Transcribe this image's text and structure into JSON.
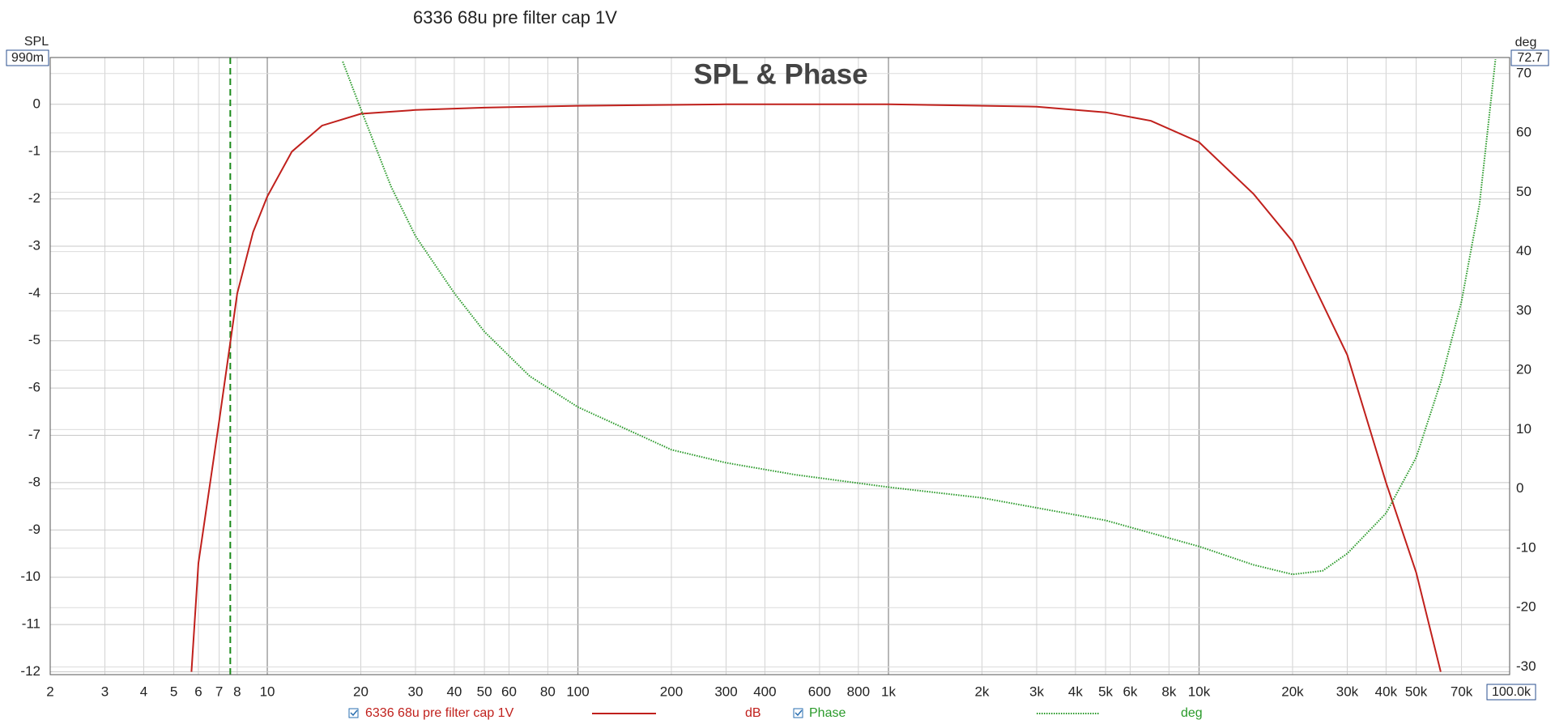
{
  "chart_data": {
    "type": "line",
    "window_title": "6336 68u pre filter cap 1V",
    "title": "SPL & Phase",
    "ylabel": "SPL",
    "y2label": "deg",
    "ylim": [
      -12.06,
      0.99
    ],
    "ylim_label": "990m",
    "y2lim": [
      -31.3,
      72.7
    ],
    "y2lim_label": "72.7",
    "xlim": [
      2,
      100000
    ],
    "xlim_label": "100.0k",
    "xscale": "log",
    "grid": true,
    "yticks": [
      0,
      -1,
      -2,
      -3,
      -4,
      -5,
      -6,
      -7,
      -8,
      -9,
      -10,
      -11,
      -12
    ],
    "y2ticks": [
      70,
      60,
      50,
      40,
      30,
      20,
      10,
      0,
      -10,
      -20,
      -30
    ],
    "xticks": [
      2,
      3,
      4,
      5,
      6,
      7,
      8,
      10,
      20,
      30,
      40,
      50,
      60,
      80,
      100,
      200,
      300,
      400,
      600,
      800,
      {
        "value": 1000,
        "label": "1k"
      },
      {
        "value": 2000,
        "label": "2k"
      },
      {
        "value": 3000,
        "label": "3k"
      },
      {
        "value": 4000,
        "label": "4k"
      },
      {
        "value": 5000,
        "label": "5k"
      },
      {
        "value": 6000,
        "label": "6k"
      },
      {
        "value": 8000,
        "label": "8k"
      },
      {
        "value": 10000,
        "label": "10k"
      },
      {
        "value": 20000,
        "label": "20k"
      },
      {
        "value": 30000,
        "label": "30k"
      },
      {
        "value": 40000,
        "label": "40k"
      },
      {
        "value": 50000,
        "label": "50k"
      },
      {
        "value": 70000,
        "label": "70k"
      }
    ],
    "cursor_x": 7.6,
    "series": [
      {
        "name": "6336 68u pre filter cap 1V",
        "unit": "dB",
        "color": "#c0201c",
        "axis": "y",
        "style": "solid",
        "x": [
          5.7,
          6,
          7,
          8,
          9,
          10,
          12,
          15,
          20,
          30,
          50,
          100,
          300,
          1000,
          3000,
          5000,
          7000,
          10000,
          15000,
          20000,
          30000,
          40000,
          50000,
          60000
        ],
        "values": [
          -12,
          -9.7,
          -6.7,
          -4,
          -2.7,
          -1.95,
          -1,
          -0.45,
          -0.2,
          -0.12,
          -0.07,
          -0.03,
          0,
          0,
          -0.05,
          -0.17,
          -0.35,
          -0.8,
          -1.9,
          -2.9,
          -5.3,
          -8,
          -9.9,
          -12
        ]
      },
      {
        "name": "Phase",
        "unit": "deg",
        "color": "#2a9a2a",
        "axis": "y2",
        "style": "dotted",
        "x": [
          17.5,
          20,
          25,
          30,
          40,
          50,
          70,
          100,
          200,
          300,
          500,
          1000,
          2000,
          5000,
          10000,
          15000,
          20000,
          25000,
          30000,
          40000,
          50000,
          60000,
          70000,
          80000,
          90000
        ],
        "values": [
          72,
          64,
          51,
          42.6,
          33,
          26.5,
          19,
          13.8,
          6.6,
          4.4,
          2.4,
          0.3,
          -1.5,
          -5.3,
          -9.7,
          -12.8,
          -14.4,
          -13.8,
          -10.9,
          -4.1,
          5.3,
          18,
          31.6,
          48,
          72.4
        ]
      }
    ]
  }
}
